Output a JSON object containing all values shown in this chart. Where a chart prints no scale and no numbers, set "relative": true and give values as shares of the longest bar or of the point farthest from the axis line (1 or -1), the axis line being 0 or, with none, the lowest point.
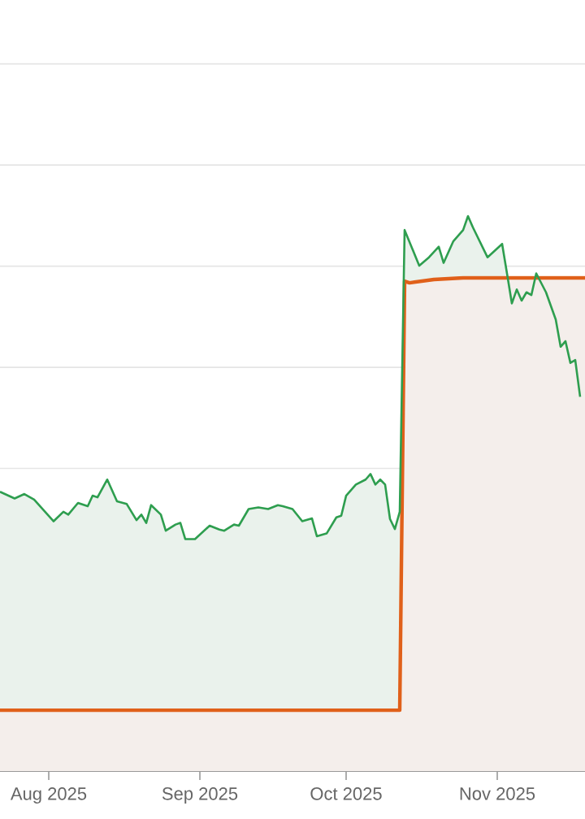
{
  "chart_data": {
    "type": "area",
    "relative": true,
    "grid": "y",
    "xlim": [
      "2025-07-22",
      "2025-11-19"
    ],
    "xticks": [
      {
        "value": "2025-08-01",
        "label": "Aug 2025"
      },
      {
        "value": "2025-09-01",
        "label": "Sep 2025"
      },
      {
        "value": "2025-10-01",
        "label": "Oct 2025"
      },
      {
        "value": "2025-11-01",
        "label": "Nov 2025"
      }
    ],
    "series": [
      {
        "color": "#2e9e4f",
        "x": [
          "2025-07-22",
          "2025-07-25",
          "2025-07-27",
          "2025-07-29",
          "2025-08-02",
          "2025-08-04",
          "2025-08-05",
          "2025-08-07",
          "2025-08-09",
          "2025-08-10",
          "2025-08-11",
          "2025-08-13",
          "2025-08-15",
          "2025-08-17",
          "2025-08-19",
          "2025-08-20",
          "2025-08-21",
          "2025-08-22",
          "2025-08-24",
          "2025-08-25",
          "2025-08-27",
          "2025-08-28",
          "2025-08-29",
          "2025-08-31",
          "2025-09-03",
          "2025-09-05",
          "2025-09-06",
          "2025-09-08",
          "2025-09-09",
          "2025-09-11",
          "2025-09-13",
          "2025-09-15",
          "2025-09-17",
          "2025-09-18",
          "2025-09-20",
          "2025-09-22",
          "2025-09-24",
          "2025-09-25",
          "2025-09-27",
          "2025-09-29",
          "2025-09-30",
          "2025-10-01",
          "2025-10-03",
          "2025-10-05",
          "2025-10-06",
          "2025-10-07",
          "2025-10-08",
          "2025-10-09",
          "2025-10-10",
          "2025-10-11",
          "2025-10-12",
          "2025-10-13",
          "2025-10-16",
          "2025-10-18",
          "2025-10-20",
          "2025-10-21",
          "2025-10-23",
          "2025-10-25",
          "2025-10-26",
          "2025-10-27",
          "2025-10-30",
          "2025-11-02",
          "2025-11-03",
          "2025-11-04",
          "2025-11-05",
          "2025-11-06",
          "2025-11-07",
          "2025-11-08",
          "2025-11-09",
          "2025-11-11",
          "2025-11-13",
          "2025-11-14",
          "2025-11-15",
          "2025-11-16",
          "2025-11-17",
          "2025-11-18"
        ],
        "values": [
          0.504,
          0.492,
          0.5,
          0.49,
          0.451,
          0.468,
          0.463,
          0.484,
          0.478,
          0.497,
          0.494,
          0.526,
          0.487,
          0.482,
          0.453,
          0.463,
          0.448,
          0.48,
          0.463,
          0.434,
          0.445,
          0.448,
          0.419,
          0.419,
          0.443,
          0.436,
          0.434,
          0.445,
          0.443,
          0.473,
          0.476,
          0.473,
          0.48,
          0.478,
          0.473,
          0.451,
          0.456,
          0.424,
          0.429,
          0.458,
          0.461,
          0.497,
          0.517,
          0.526,
          0.536,
          0.517,
          0.526,
          0.517,
          0.455,
          0.437,
          0.468,
          0.975,
          0.911,
          0.926,
          0.945,
          0.916,
          0.955,
          0.975,
          1.0,
          0.98,
          0.926,
          0.95,
          0.897,
          0.843,
          0.868,
          0.848,
          0.863,
          0.858,
          0.897,
          0.863,
          0.814,
          0.765,
          0.775,
          0.736,
          0.741,
          0.675
        ]
      },
      {
        "color": "#e0601a",
        "x": [
          "2025-07-22",
          "2025-10-12",
          "2025-10-13",
          "2025-10-14",
          "2025-10-19",
          "2025-10-25",
          "2025-11-19"
        ],
        "values": [
          0.111,
          0.111,
          0.883,
          0.88,
          0.886,
          0.889,
          0.889
        ]
      }
    ]
  }
}
